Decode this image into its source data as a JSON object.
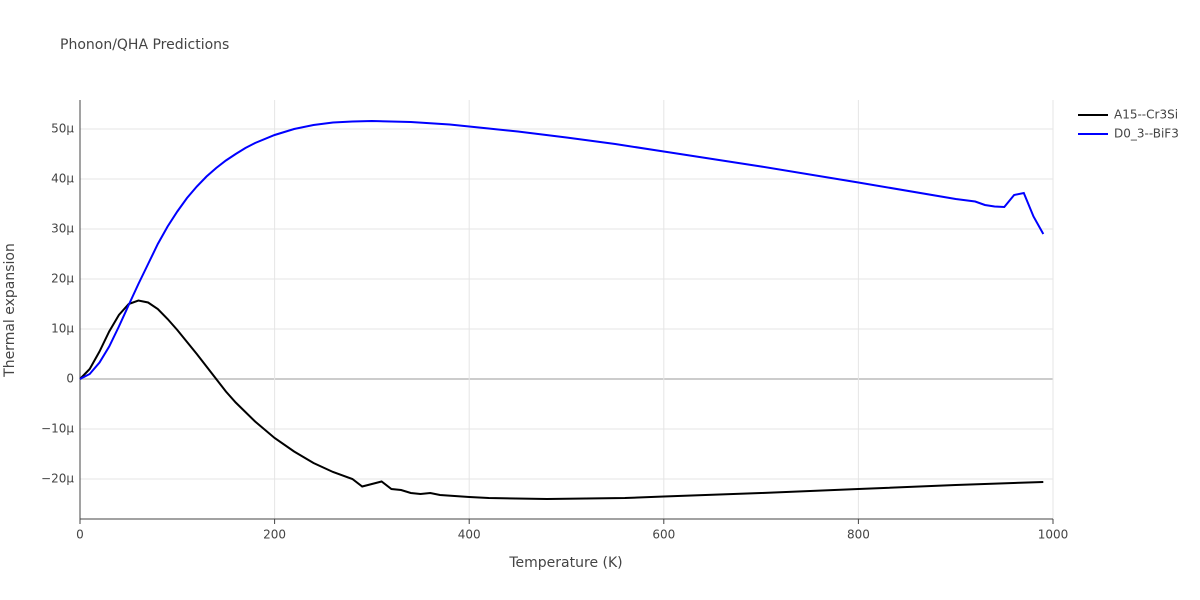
{
  "chart_data": {
    "type": "line",
    "title": "Phonon/QHA Predictions",
    "x_label": "Temperature (K)",
    "y_label": "Thermal expansion",
    "xlim": [
      0,
      1000
    ],
    "xticks": [
      0,
      200,
      400,
      600,
      800,
      1000
    ],
    "ylim": [
      -28,
      55.8
    ],
    "yticks": [
      {
        "value": -20,
        "label": "−20μ"
      },
      {
        "value": -10,
        "label": "−10μ"
      },
      0,
      {
        "value": 10,
        "label": "10μ"
      },
      {
        "value": 20,
        "label": "20μ"
      },
      {
        "value": 30,
        "label": "30μ"
      },
      {
        "value": 40,
        "label": "40μ"
      },
      {
        "value": 50,
        "label": "50μ"
      }
    ],
    "grid": true,
    "legend": "top-right",
    "series": [
      {
        "name": "A15--Cr3Si",
        "color": "#000000",
        "x": [
          0,
          10,
          20,
          30,
          40,
          50,
          60,
          70,
          80,
          90,
          100,
          120,
          140,
          150,
          160,
          180,
          200,
          220,
          240,
          260,
          280,
          290,
          300,
          310,
          320,
          330,
          340,
          350,
          360,
          370,
          400,
          420,
          480,
          560,
          600,
          700,
          800,
          900,
          990
        ],
        "values": [
          0,
          2,
          5.5,
          9.5,
          12.8,
          15,
          15.7,
          15.3,
          14,
          12,
          9.8,
          5,
          0,
          -2.5,
          -4.7,
          -8.5,
          -11.8,
          -14.5,
          -16.8,
          -18.6,
          -20,
          -21.5,
          -21,
          -20.5,
          -22,
          -22.2,
          -22.8,
          -23,
          -22.8,
          -23.2,
          -23.6,
          -23.8,
          -24,
          -23.8,
          -23.5,
          -22.8,
          -22,
          -21.2,
          -20.6
        ]
      },
      {
        "name": "D0_3--BiF3",
        "color": "#0000ff",
        "x": [
          0,
          10,
          20,
          30,
          40,
          50,
          60,
          70,
          80,
          90,
          100,
          110,
          120,
          130,
          140,
          150,
          160,
          170,
          180,
          200,
          220,
          240,
          260,
          280,
          300,
          340,
          380,
          400,
          450,
          500,
          550,
          600,
          700,
          800,
          900,
          920,
          930,
          940,
          950,
          960,
          970,
          980,
          990
        ],
        "values": [
          0,
          1,
          3.3,
          6.5,
          10.5,
          14.8,
          19,
          23,
          27,
          30.5,
          33.5,
          36.2,
          38.5,
          40.5,
          42.2,
          43.7,
          45,
          46.2,
          47.2,
          48.8,
          50,
          50.8,
          51.3,
          51.5,
          51.6,
          51.4,
          50.9,
          50.5,
          49.5,
          48.3,
          47,
          45.5,
          42.5,
          39.3,
          36,
          35.5,
          34.8,
          34.5,
          34.4,
          36.8,
          37.2,
          32.5,
          29
        ]
      }
    ]
  }
}
